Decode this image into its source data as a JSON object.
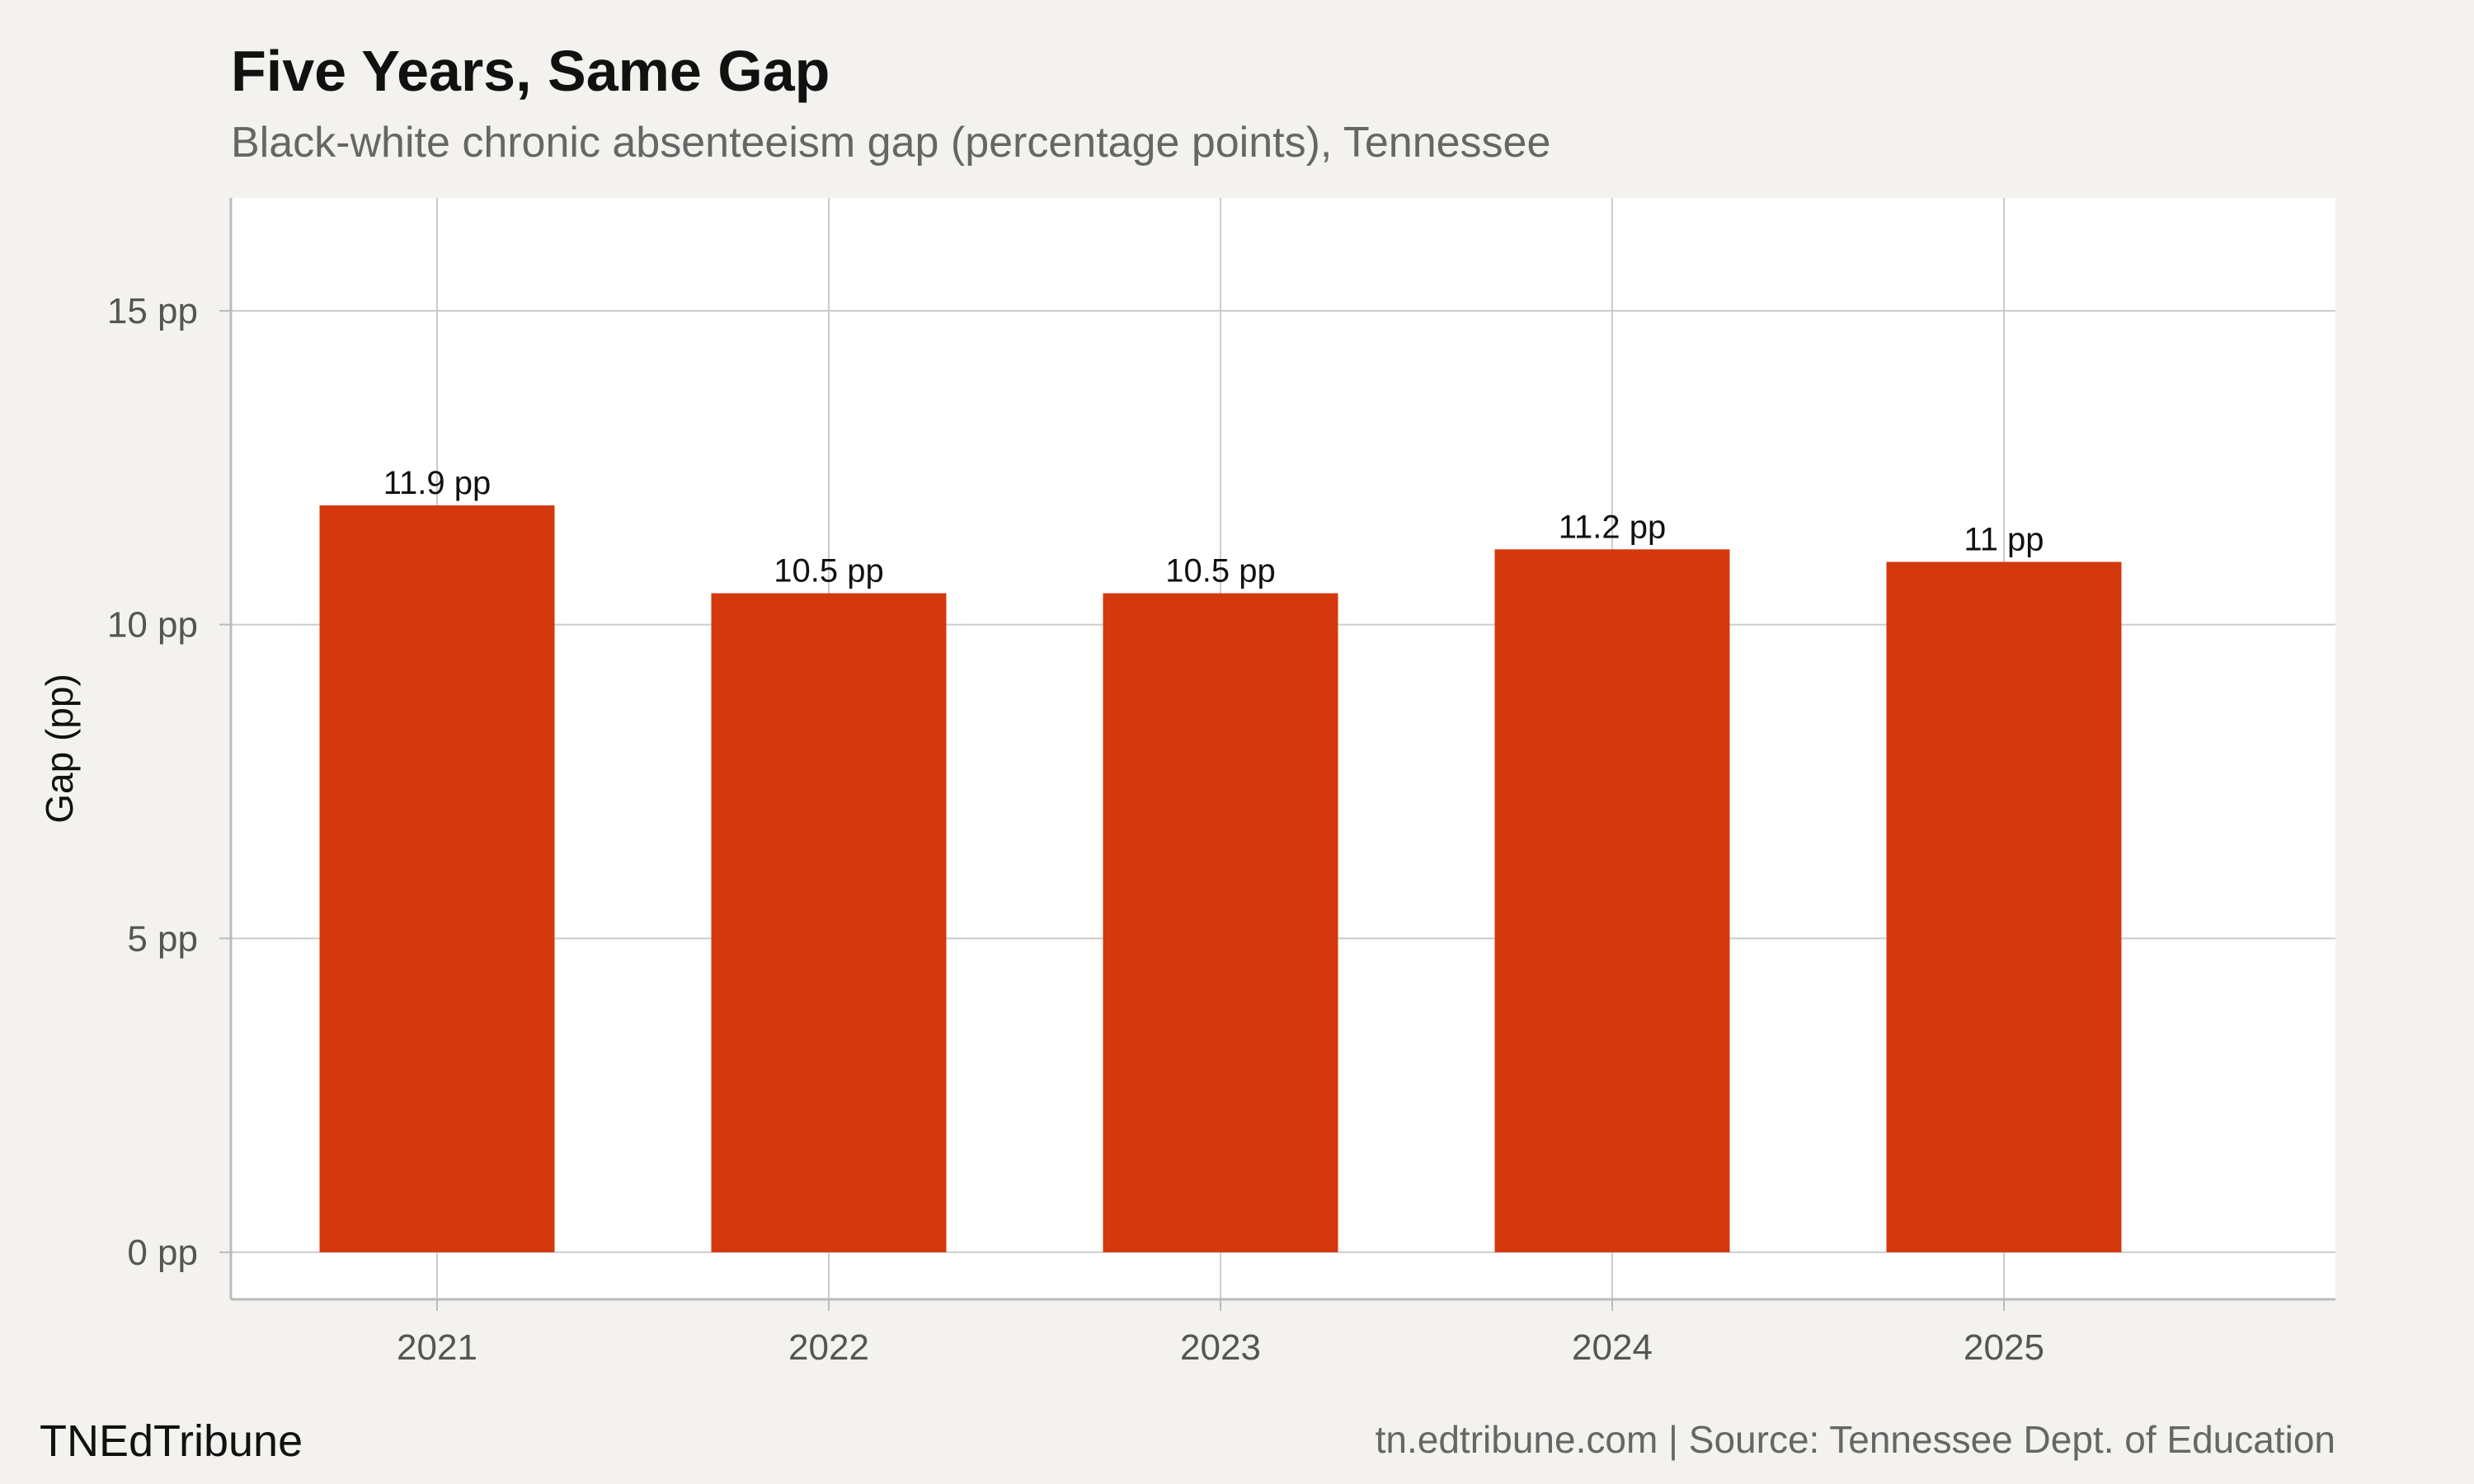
{
  "chart_data": {
    "type": "bar",
    "title": "Five Years, Same Gap",
    "subtitle": "Black-white chronic absenteeism gap (percentage points), Tennessee",
    "ylabel": "Gap (pp)",
    "xlabel": "",
    "categories": [
      "2021",
      "2022",
      "2023",
      "2024",
      "2025"
    ],
    "values": [
      11.9,
      10.5,
      10.5,
      11.2,
      11.0
    ],
    "data_labels": [
      "11.9 pp",
      "10.5 pp",
      "10.5 pp",
      "11.2 pp",
      "11 pp"
    ],
    "ylim": [
      -0.75,
      16.8
    ],
    "yticks": [
      0,
      5,
      10,
      15
    ],
    "ytick_labels": [
      "0 pp",
      "5 pp",
      "10 pp",
      "15 pp"
    ],
    "grid": true,
    "legend": "none",
    "bar_color": "#d4380d"
  },
  "footer": {
    "brand": "TNEdTribune",
    "source": "tn.edtribune.com | Source: Tennessee Dept. of Education"
  }
}
